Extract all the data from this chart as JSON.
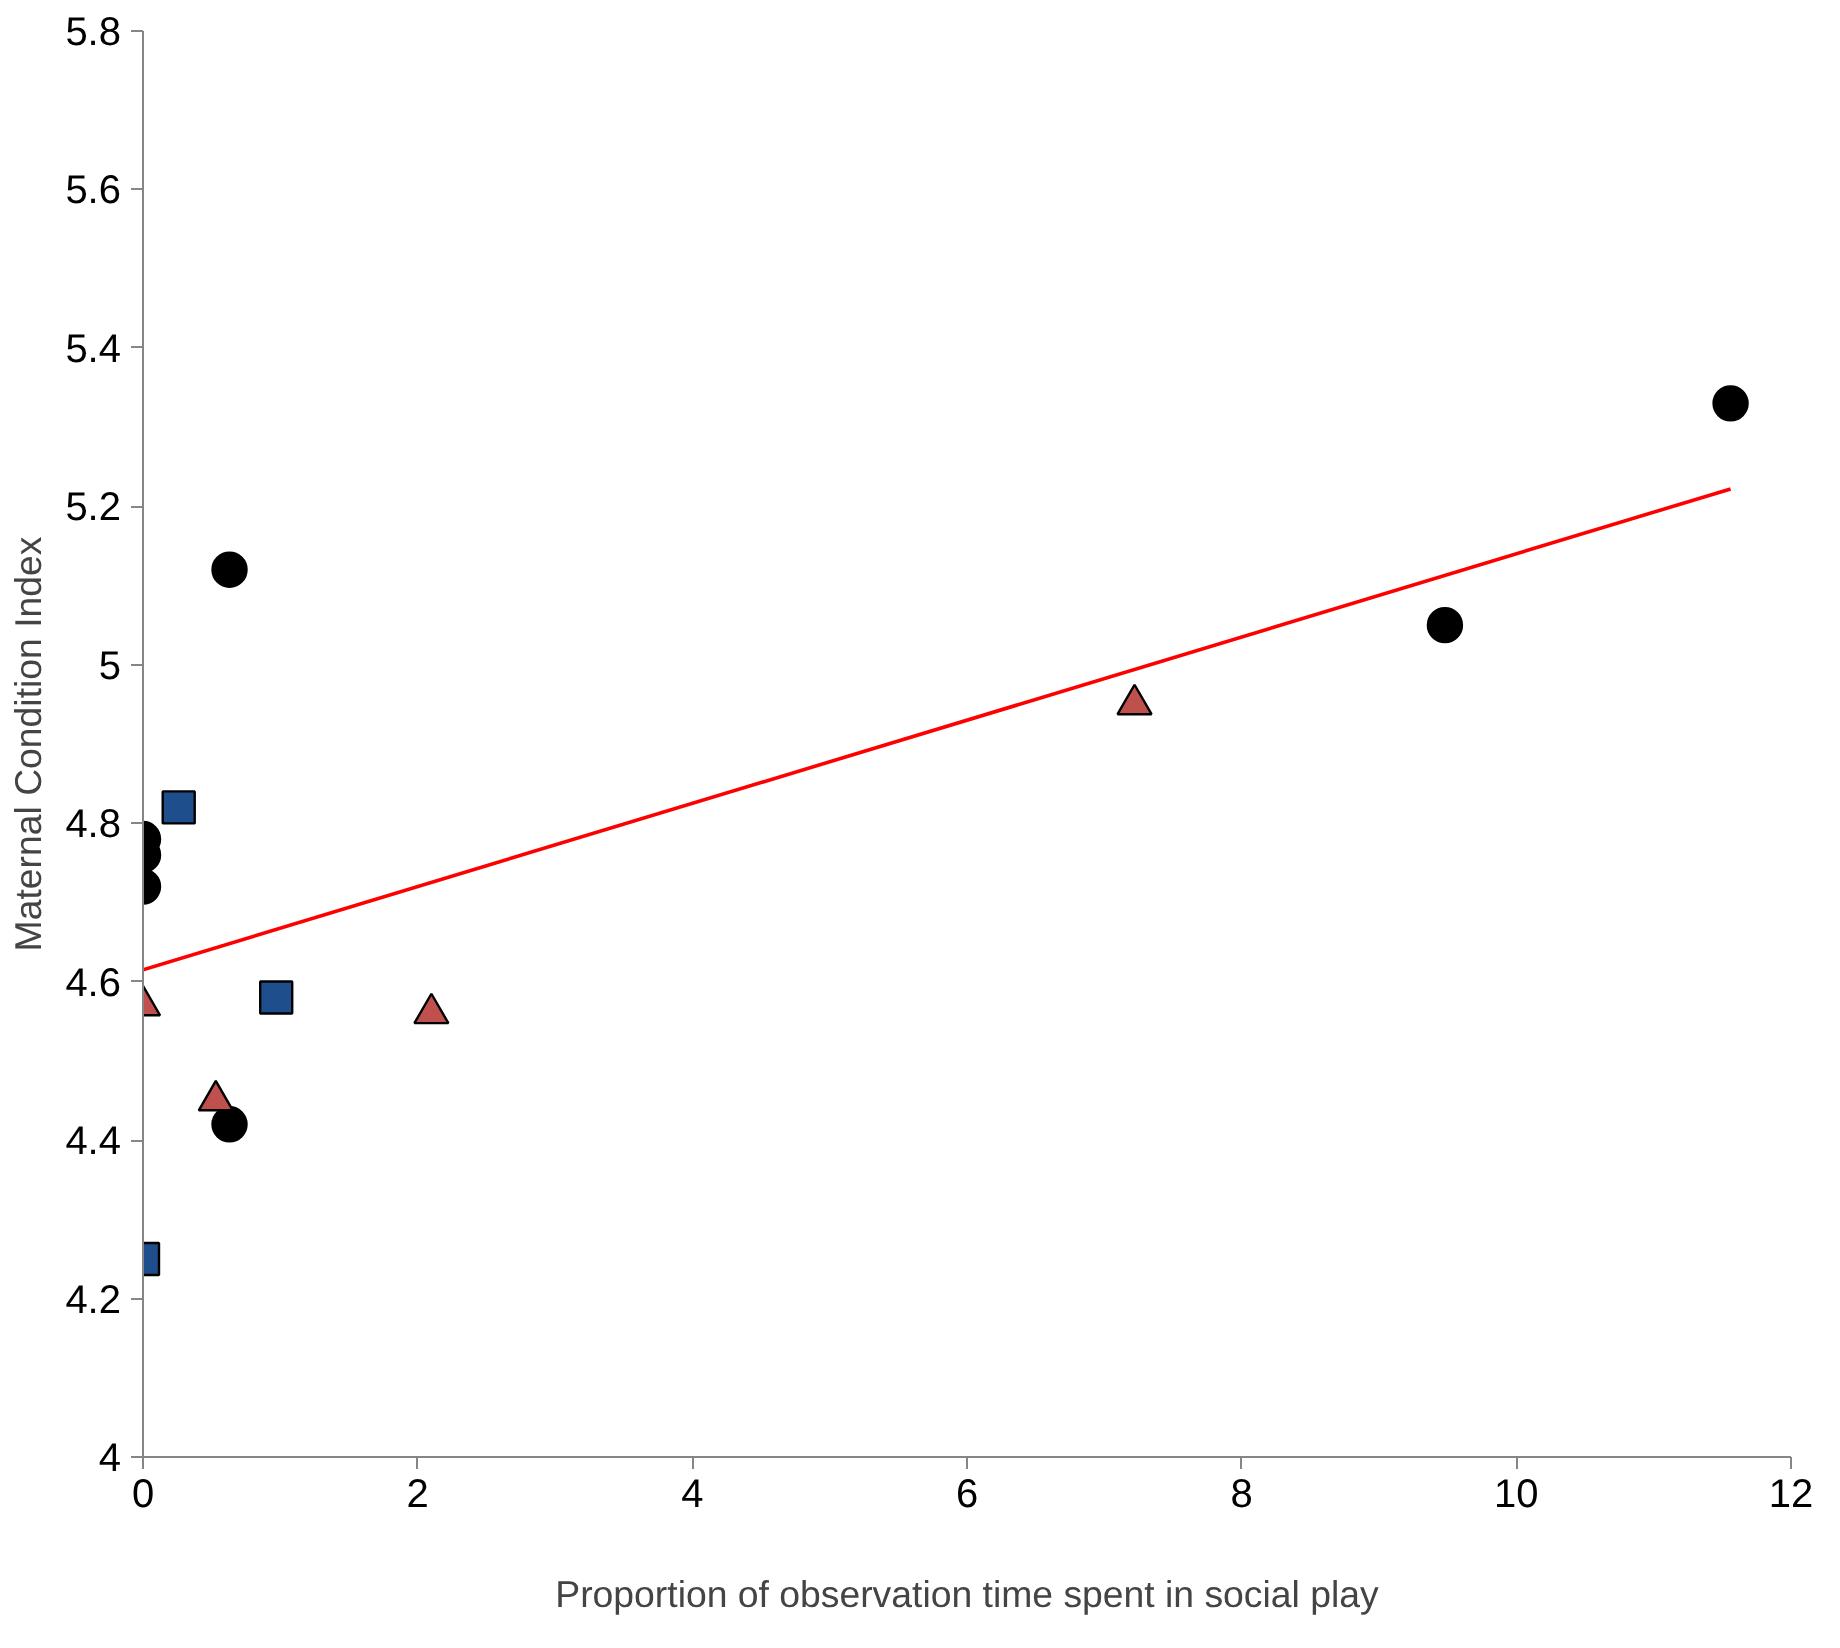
{
  "chart_data": {
    "type": "scatter",
    "xlabel": "Proportion of observation time spent in social play",
    "ylabel": "Maternal Condition Index",
    "xlim": [
      0,
      12
    ],
    "ylim": [
      4,
      5.8
    ],
    "xticks": [
      0,
      2,
      4,
      6,
      8,
      10,
      12
    ],
    "yticks": [
      4,
      {
        "value": 4.2,
        "label": "4.2"
      },
      {
        "value": 4.4,
        "label": "4.4"
      },
      {
        "value": 4.6,
        "label": "4.6"
      },
      {
        "value": 4.8,
        "label": "4.8"
      },
      5,
      {
        "value": 5.2,
        "label": "5.2"
      },
      {
        "value": 5.4,
        "label": "5.4"
      },
      {
        "value": 5.6,
        "label": "5.6"
      },
      {
        "value": 5.8,
        "label": "5.8"
      }
    ],
    "grid": false,
    "series": [
      {
        "marker": "circle",
        "color": "#000000",
        "x": [
          0,
          0,
          0,
          0.63,
          0.63,
          9.48,
          11.56
        ],
        "values": [
          4.78,
          4.76,
          4.72,
          5.12,
          4.42,
          5.05,
          5.33
        ]
      },
      {
        "marker": "square",
        "color": "#1f4e8c",
        "x": [
          0,
          0.26,
          0.97
        ],
        "values": [
          4.25,
          4.82,
          4.58
        ]
      },
      {
        "marker": "triangle",
        "color": "#c0504d",
        "x": [
          0,
          0.53,
          2.1,
          7.22
        ],
        "values": [
          4.57,
          4.45,
          4.56,
          4.95
        ]
      },
      {
        "type": "line",
        "line_style": "solid",
        "color": "#ff0000",
        "x": [
          0,
          11.56
        ],
        "values": [
          4.615,
          5.222
        ]
      }
    ]
  }
}
